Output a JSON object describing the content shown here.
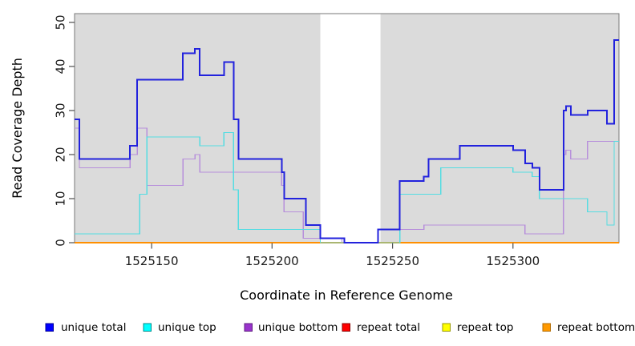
{
  "figure_type": "read coverage step plot (R-style)",
  "axes": {
    "y_title": "Read Coverage Depth",
    "x_title": "Coordinate in Reference Genome"
  },
  "chart_data": {
    "type": "line",
    "line_style": "step-after",
    "title": "",
    "xlabel": "Coordinate in Reference Genome",
    "ylabel": "Read Coverage Depth",
    "xlim": [
      1525118,
      1525344
    ],
    "ylim": [
      0,
      50
    ],
    "x_ticks": [
      "1525150",
      "1525200",
      "1525250",
      "1525300"
    ],
    "x_tick_values": [
      1525150,
      1525200,
      1525250,
      1525300
    ],
    "y_ticks": [
      "0",
      "10",
      "20",
      "30",
      "40",
      "50"
    ],
    "y_tick_values": [
      0,
      10,
      20,
      30,
      40,
      50
    ],
    "grid": false,
    "plot_background": "#dbdbdb",
    "outer_background": "#ffffff",
    "highlight_band": {
      "description": "white unshaded vertical band (gap in gray background)",
      "x_start": 1525220,
      "x_end": 1525245,
      "color": "#ffffff"
    },
    "legend_position": "bottom",
    "series": [
      {
        "name": "unique total",
        "line_color": "#2222dd",
        "legend_fill": "#0000ff",
        "legend_border": "#000099",
        "stroke_width": 2.0,
        "points": [
          [
            1525118,
            28
          ],
          [
            1525120,
            19
          ],
          [
            1525141,
            22
          ],
          [
            1525144,
            37
          ],
          [
            1525163,
            43
          ],
          [
            1525168,
            44
          ],
          [
            1525170,
            38
          ],
          [
            1525180,
            41
          ],
          [
            1525184,
            28
          ],
          [
            1525186,
            19
          ],
          [
            1525204,
            16
          ],
          [
            1525205,
            10
          ],
          [
            1525214,
            4
          ],
          [
            1525220,
            1
          ],
          [
            1525230,
            0
          ],
          [
            1525244,
            3
          ],
          [
            1525253,
            14
          ],
          [
            1525263,
            15
          ],
          [
            1525265,
            19
          ],
          [
            1525278,
            22
          ],
          [
            1525300,
            21
          ],
          [
            1525305,
            18
          ],
          [
            1525308,
            17
          ],
          [
            1525311,
            12
          ],
          [
            1525321,
            30
          ],
          [
            1525322,
            31
          ],
          [
            1525324,
            29
          ],
          [
            1525331,
            30
          ],
          [
            1525339,
            27
          ],
          [
            1525342,
            46
          ]
        ]
      },
      {
        "name": "unique top",
        "line_color": "#55dce2",
        "legend_fill": "#00ffff",
        "legend_border": "#008b8b",
        "stroke_width": 1.4,
        "points": [
          [
            1525118,
            2
          ],
          [
            1525145,
            11
          ],
          [
            1525148,
            24
          ],
          [
            1525170,
            22
          ],
          [
            1525180,
            25
          ],
          [
            1525184,
            12
          ],
          [
            1525186,
            3
          ],
          [
            1525220,
            0
          ],
          [
            1525253,
            11
          ],
          [
            1525270,
            17
          ],
          [
            1525300,
            16
          ],
          [
            1525308,
            15
          ],
          [
            1525311,
            10
          ],
          [
            1525331,
            7
          ],
          [
            1525339,
            4
          ],
          [
            1525342,
            23
          ]
        ]
      },
      {
        "name": "unique bottom",
        "line_color": "#b78fdb",
        "legend_fill": "#9933cc",
        "legend_border": "#5e1d80",
        "stroke_width": 1.4,
        "points": [
          [
            1525118,
            26
          ],
          [
            1525120,
            17
          ],
          [
            1525141,
            20
          ],
          [
            1525144,
            26
          ],
          [
            1525148,
            13
          ],
          [
            1525163,
            19
          ],
          [
            1525168,
            20
          ],
          [
            1525170,
            16
          ],
          [
            1525204,
            13
          ],
          [
            1525205,
            7
          ],
          [
            1525213,
            1
          ],
          [
            1525229,
            0
          ],
          [
            1525244,
            3
          ],
          [
            1525263,
            4
          ],
          [
            1525305,
            2
          ],
          [
            1525321,
            20
          ],
          [
            1525322,
            21
          ],
          [
            1525324,
            19
          ],
          [
            1525331,
            23
          ]
        ]
      },
      {
        "name": "repeat total",
        "line_color": "#dd2222",
        "legend_fill": "#ff0000",
        "legend_border": "#8b0000",
        "stroke_width": 1.2,
        "points": [
          [
            1525118,
            0
          ]
        ]
      },
      {
        "name": "repeat top",
        "line_color": "#eeee00",
        "legend_fill": "#ffff00",
        "legend_border": "#999900",
        "stroke_width": 1.2,
        "points": [
          [
            1525118,
            0
          ]
        ]
      },
      {
        "name": "repeat bottom",
        "line_color": "#ff8f00",
        "legend_fill": "#ff9900",
        "legend_border": "#b36b00",
        "stroke_width": 1.8,
        "points": [
          [
            1525118,
            0
          ]
        ]
      }
    ],
    "draw_order": [
      "repeat total",
      "repeat top",
      "repeat bottom",
      "unique bottom",
      "unique top",
      "unique total"
    ]
  }
}
